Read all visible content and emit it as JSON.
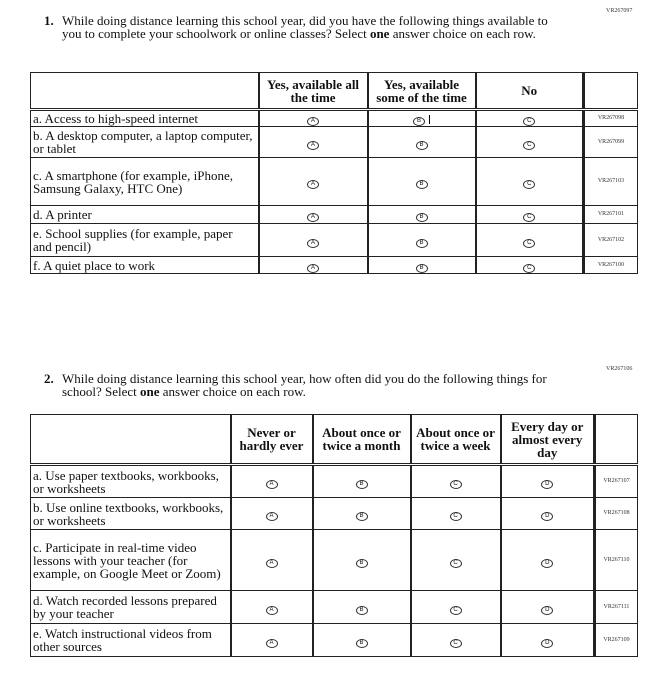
{
  "q1": {
    "code": "VR267097",
    "number": "1.",
    "text": "While doing distance learning this school year, did you have the following things available to you to complete your schoolwork or online classes? Select ",
    "bold": "one",
    "text2": " answer choice on each row.",
    "columns": [
      "Yes, available all the time",
      "Yes, available some of the time",
      "No"
    ],
    "bubbles": [
      "A",
      "B",
      "C"
    ],
    "rows": [
      {
        "label": "a. Access to high-speed internet",
        "code": "VR267098"
      },
      {
        "label": "b. A desktop computer, a laptop computer, or tablet",
        "code": "VR267099"
      },
      {
        "label": "c. A smartphone (for example, iPhone, Samsung Galaxy, HTC One)",
        "code": "VR267103"
      },
      {
        "label": "d. A printer",
        "code": "VR267101"
      },
      {
        "label": "e. School supplies (for example, paper and pencil)",
        "code": "VR267102"
      },
      {
        "label": "f. A quiet place to work",
        "code": "VR267100"
      }
    ]
  },
  "q2": {
    "code": "VR267106",
    "number": "2.",
    "text": "While doing distance learning this school year, how often did you do the following things for school? Select ",
    "bold": "one",
    "text2": " answer choice on each row.",
    "columns": [
      "Never or hardly ever",
      "About once or twice a month",
      "About once or twice a week",
      "Every day or almost every day"
    ],
    "bubbles": [
      "A",
      "B",
      "C",
      "D"
    ],
    "rows": [
      {
        "label": "a. Use paper textbooks, workbooks, or worksheets",
        "code": "VR267107"
      },
      {
        "label": "b. Use online textbooks, workbooks, or worksheets",
        "code": "VR267108"
      },
      {
        "label": "c. Participate in real-time video lessons with your teacher (for example, on Google Meet or Zoom)",
        "code": "VR267110"
      },
      {
        "label": "d. Watch recorded lessons prepared by your teacher",
        "code": "VR267111"
      },
      {
        "label": "e. Watch instructional videos from other sources",
        "code": "VR267109"
      }
    ]
  }
}
